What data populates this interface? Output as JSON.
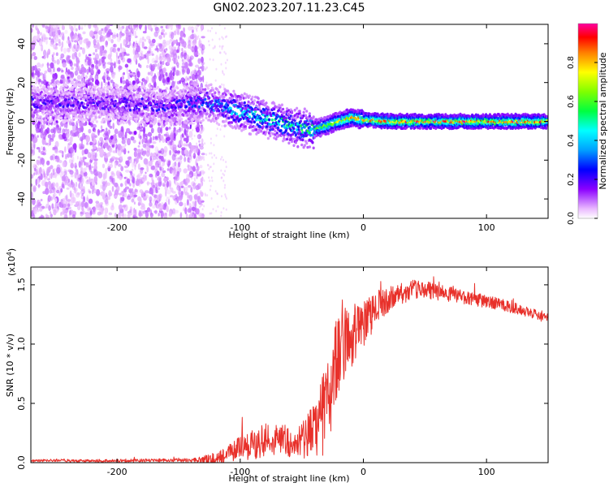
{
  "figure_title": "GN02.2023.207.11.23.C45",
  "chart_data": [
    {
      "type": "heatmap",
      "name": "spectrogram",
      "xlabel": "Height of straight line (km)",
      "ylabel": "Frequency (Hz)",
      "xlim": [
        -270,
        150
      ],
      "ylim": [
        -50,
        50
      ],
      "xticks": [
        -200,
        -100,
        0,
        100
      ],
      "xtick_labels": [
        "-200",
        "-100",
        "0",
        "100"
      ],
      "yticks": [
        -40,
        -20,
        0,
        20,
        40
      ],
      "ytick_labels": [
        "-40",
        "-20",
        "0",
        "20",
        "40"
      ],
      "colorbar": {
        "label": "Normalized spectral amplitude",
        "range": [
          0,
          1
        ],
        "ticks": [
          0.0,
          0.2,
          0.4,
          0.6,
          0.8
        ],
        "tick_labels": [
          "0.0",
          "0.2",
          "0.4",
          "0.6",
          "0.8"
        ],
        "stops": [
          {
            "v": 0.0,
            "c": "#ffffff"
          },
          {
            "v": 0.05,
            "c": "#e9b8ff"
          },
          {
            "v": 0.15,
            "c": "#8a00ff"
          },
          {
            "v": 0.25,
            "c": "#0000ff"
          },
          {
            "v": 0.35,
            "c": "#00a0ff"
          },
          {
            "v": 0.45,
            "c": "#00ffff"
          },
          {
            "v": 0.55,
            "c": "#00ff40"
          },
          {
            "v": 0.65,
            "c": "#80ff00"
          },
          {
            "v": 0.75,
            "c": "#ffff00"
          },
          {
            "v": 0.85,
            "c": "#ff8000"
          },
          {
            "v": 0.93,
            "c": "#ff0000"
          },
          {
            "v": 1.0,
            "c": "#ff00a0"
          }
        ]
      },
      "ridge": [
        {
          "x": -270,
          "y": 10,
          "amp": 0.22
        },
        {
          "x": -200,
          "y": 9,
          "amp": 0.2
        },
        {
          "x": -150,
          "y": 8,
          "amp": 0.25
        },
        {
          "x": -130,
          "y": 10,
          "amp": 0.32
        },
        {
          "x": -110,
          "y": 7,
          "amp": 0.4
        },
        {
          "x": -90,
          "y": 3,
          "amp": 0.45
        },
        {
          "x": -70,
          "y": 0,
          "amp": 0.5
        },
        {
          "x": -55,
          "y": -3,
          "amp": 0.5
        },
        {
          "x": -40,
          "y": -4,
          "amp": 0.6
        },
        {
          "x": -25,
          "y": -1,
          "amp": 0.72
        },
        {
          "x": -10,
          "y": 2,
          "amp": 0.8
        },
        {
          "x": 0,
          "y": 1,
          "amp": 0.85
        },
        {
          "x": 20,
          "y": 0,
          "amp": 0.9
        },
        {
          "x": 80,
          "y": 0,
          "amp": 0.9
        },
        {
          "x": 150,
          "y": 0,
          "amp": 0.88
        }
      ]
    },
    {
      "type": "line",
      "name": "snr",
      "xlabel": "Height of straight line (km)",
      "ylabel": "SNR (10 * v/v)",
      "yscale_label": "(x10",
      "yscale_exponent": "4",
      "yscale_suffix": ")",
      "xlim": [
        -270,
        150
      ],
      "ylim": [
        0,
        1.65
      ],
      "xticks": [
        -200,
        -100,
        0,
        100
      ],
      "xtick_labels": [
        "-200",
        "-100",
        "0",
        "100"
      ],
      "yticks": [
        0.0,
        0.5,
        1.0,
        1.5
      ],
      "ytick_labels": [
        "0.0",
        "0.5",
        "1.0",
        "1.5"
      ],
      "color": "#e8302a",
      "series": [
        {
          "name": "SNR",
          "x": [
            -270,
            -250,
            -230,
            -200,
            -170,
            -150,
            -130,
            -120,
            -110,
            -100,
            -90,
            -80,
            -70,
            -65,
            -60,
            -50,
            -45,
            -40,
            -35,
            -30,
            -25,
            -20,
            -15,
            -10,
            -5,
            0,
            10,
            20,
            30,
            40,
            50,
            60,
            70,
            80,
            90,
            100,
            110,
            120,
            130,
            140,
            150
          ],
          "y": [
            0.015,
            0.02,
            0.015,
            0.015,
            0.02,
            0.02,
            0.02,
            0.03,
            0.07,
            0.12,
            0.15,
            0.18,
            0.2,
            0.22,
            0.15,
            0.15,
            0.25,
            0.3,
            0.32,
            0.55,
            0.7,
            0.95,
            1.0,
            1.05,
            1.1,
            1.15,
            1.3,
            1.38,
            1.43,
            1.46,
            1.46,
            1.44,
            1.42,
            1.4,
            1.38,
            1.36,
            1.34,
            1.31,
            1.28,
            1.25,
            1.21
          ]
        }
      ],
      "noise": [
        {
          "x": -270,
          "a": 0.01
        },
        {
          "x": -140,
          "a": 0.015
        },
        {
          "x": -110,
          "a": 0.08
        },
        {
          "x": -75,
          "a": 0.16
        },
        {
          "x": -60,
          "a": 0.12
        },
        {
          "x": -45,
          "a": 0.2
        },
        {
          "x": -30,
          "a": 0.42
        },
        {
          "x": -10,
          "a": 0.28
        },
        {
          "x": 10,
          "a": 0.14
        },
        {
          "x": 40,
          "a": 0.08
        },
        {
          "x": 80,
          "a": 0.06
        },
        {
          "x": 150,
          "a": 0.04
        }
      ]
    }
  ]
}
